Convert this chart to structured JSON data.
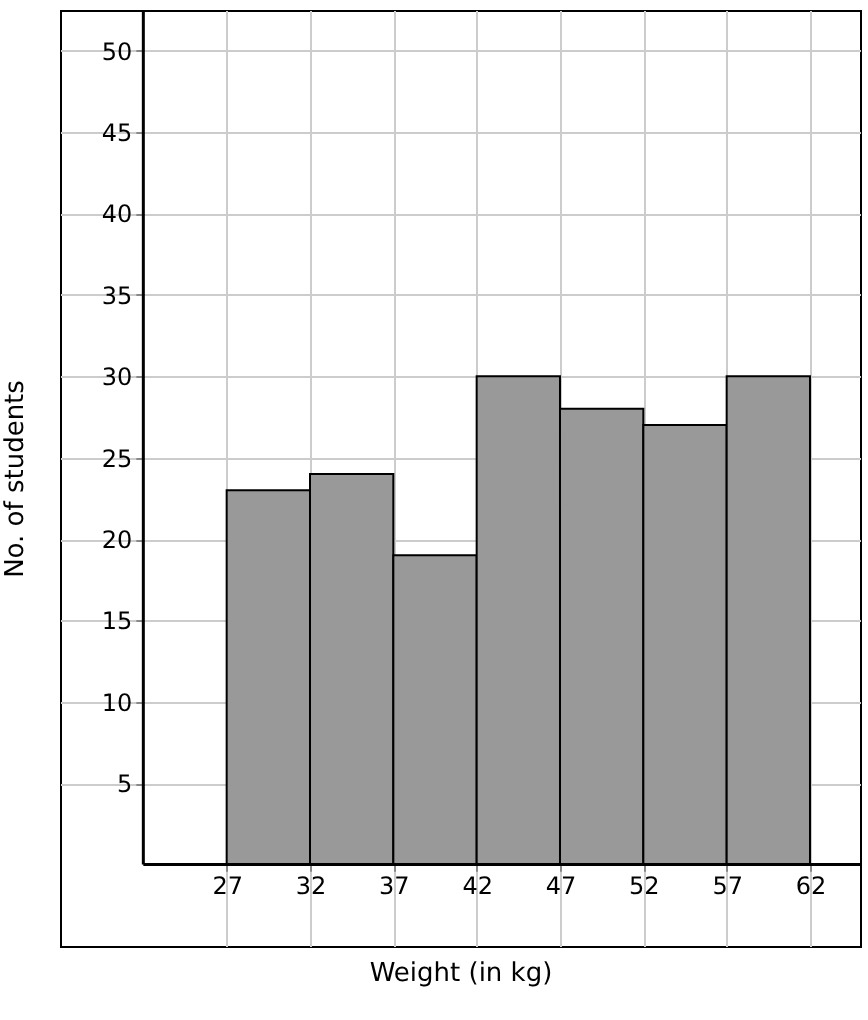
{
  "chart_data": {
    "type": "histogram",
    "xlabel": "Weight (in kg)",
    "ylabel": "No. of students",
    "bins": [
      27,
      32,
      37,
      42,
      47,
      52,
      57,
      62
    ],
    "values": [
      23,
      24,
      19,
      30,
      28,
      27,
      30
    ],
    "color": "#999999",
    "xlim": [
      17,
      65
    ],
    "ylim": [
      -5,
      52.5
    ],
    "xticks": [
      27,
      32,
      37,
      42,
      47,
      52,
      57,
      62
    ],
    "yticks": [
      5,
      10,
      15,
      20,
      25,
      30,
      35,
      40,
      45,
      50
    ],
    "grid": true
  }
}
